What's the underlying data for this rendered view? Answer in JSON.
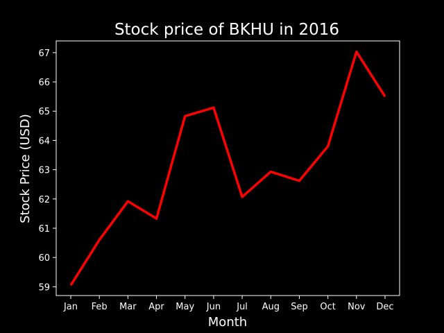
{
  "chart_data": {
    "type": "line",
    "title": "Stock price of BKHU in 2016",
    "xlabel": "Month",
    "ylabel": "Stock Price (USD)",
    "categories": [
      "Jan",
      "Feb",
      "Mar",
      "Apr",
      "May",
      "Jun",
      "Jul",
      "Aug",
      "Sep",
      "Oct",
      "Nov",
      "Dec"
    ],
    "series": [
      {
        "values": [
          59.05,
          60.6,
          61.92,
          61.33,
          64.83,
          65.12,
          62.07,
          62.93,
          62.62,
          63.8,
          67.03,
          65.5
        ]
      }
    ],
    "ylim": [
      58.7,
      67.4
    ],
    "yticks": [
      59,
      60,
      61,
      62,
      63,
      64,
      65,
      66,
      67
    ],
    "grid": false,
    "legend": false,
    "colors": {
      "background": "#000000",
      "line": "#ff0000",
      "axes": "#ffffff",
      "text": "#ffffff"
    }
  }
}
